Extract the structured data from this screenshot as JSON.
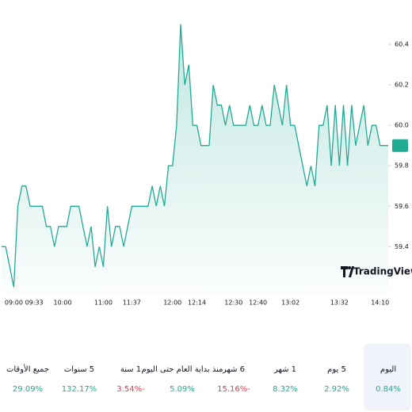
{
  "chart_data": {
    "type": "line",
    "categories": [
      null,
      null,
      null,
      "09:00",
      null,
      null,
      null,
      null,
      "09:33",
      null,
      null,
      null,
      null,
      null,
      null,
      "10:00",
      null,
      null,
      null,
      null,
      null,
      null,
      null,
      null,
      null,
      "11:00",
      null,
      null,
      null,
      null,
      null,
      null,
      "11:37",
      null,
      null,
      null,
      null,
      null,
      null,
      null,
      null,
      null,
      "12:00",
      null,
      null,
      null,
      null,
      null,
      "12:14",
      null,
      null,
      null,
      null,
      null,
      null,
      null,
      null,
      "12:30",
      null,
      null,
      null,
      null,
      null,
      "12:40",
      null,
      null,
      null,
      null,
      null,
      null,
      null,
      "13:02",
      null,
      null,
      null,
      null,
      null,
      null,
      null,
      null,
      null,
      null,
      null,
      "13:32",
      null,
      null,
      null,
      null,
      null,
      null,
      null,
      null,
      null,
      "14:10",
      null,
      null
    ],
    "series": [
      {
        "color": "#22ab94",
        "values": [
          59.4,
          59.4,
          59.3,
          59.2,
          59.6,
          59.7,
          59.7,
          59.6,
          59.6,
          59.6,
          59.6,
          59.5,
          59.5,
          59.4,
          59.5,
          59.5,
          59.5,
          59.6,
          59.6,
          59.6,
          59.5,
          59.4,
          59.5,
          59.3,
          59.4,
          59.3,
          59.6,
          59.4,
          59.5,
          59.5,
          59.4,
          59.5,
          59.6,
          59.6,
          59.6,
          59.6,
          59.6,
          59.7,
          59.6,
          59.7,
          59.6,
          59.8,
          59.8,
          60.0,
          60.5,
          60.2,
          60.3,
          60.0,
          60.0,
          59.9,
          59.9,
          59.9,
          60.2,
          60.1,
          60.1,
          60.0,
          60.1,
          60.0,
          60.0,
          60.0,
          60.0,
          60.1,
          60.0,
          60.0,
          60.1,
          60.0,
          60.0,
          60.2,
          60.1,
          60.0,
          60.2,
          60.0,
          60.0,
          59.9,
          59.8,
          59.7,
          59.8,
          59.7,
          60.0,
          60.0,
          60.1,
          59.8,
          60.1,
          59.8,
          60.1,
          59.8,
          60.1,
          59.9,
          60.0,
          60.1,
          59.9,
          60.0,
          60.0,
          59.9,
          59.9,
          59.9
        ]
      }
    ],
    "ylim": [
      59.17,
      60.62
    ],
    "yticks": [
      59.4,
      59.6,
      59.8,
      {
        "value": 60,
        "label": "60.0"
      },
      60.2,
      60.4
    ],
    "last_value": 59.9,
    "logo": "TradingView"
  },
  "periods": [
    {
      "label": "اليوم",
      "change": "0.84%",
      "color": "#22ab94",
      "selected": true
    },
    {
      "label": "5 يوم",
      "change": "2.92%",
      "color": "#22ab94"
    },
    {
      "label": "1 شهر",
      "change": "8.32%",
      "color": "#22ab94"
    },
    {
      "label": "6 شهر",
      "change": "15.16%-",
      "color": "#f23645"
    },
    {
      "label": "منذ بداية العام حتى اليوم",
      "change": "5.09%",
      "color": "#22ab94"
    },
    {
      "label": "1 سنة",
      "change": "3.54%-",
      "color": "#f23645"
    },
    {
      "label": "5 سنوات",
      "change": "132.17%",
      "color": "#22ab94"
    },
    {
      "label": "جميع الأوقات",
      "change": "29.09%",
      "color": "#22ab94"
    }
  ]
}
